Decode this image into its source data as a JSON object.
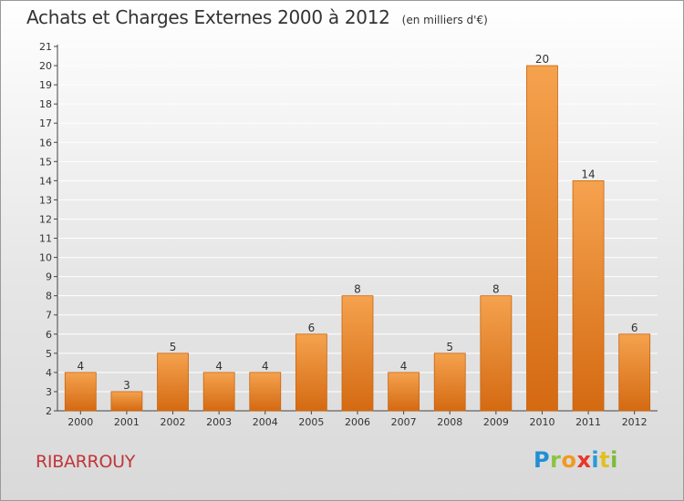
{
  "header": {
    "title": "Achats et Charges Externes 2000 à 2012",
    "subtitle": "(en milliers d'€)"
  },
  "commune": "RIBARROUY",
  "logo": {
    "text": "Proxiti"
  },
  "colors": {
    "bar_top": "#f5a24e",
    "bar_bottom": "#d46a12",
    "bar_stroke": "#c96410",
    "grid": "#ffffff",
    "axis": "#444444",
    "commune": "#c0363a"
  },
  "chart_data": {
    "type": "bar",
    "categories": [
      "2000",
      "2001",
      "2002",
      "2003",
      "2004",
      "2005",
      "2006",
      "2007",
      "2008",
      "2009",
      "2010",
      "2011",
      "2012"
    ],
    "values": [
      4,
      3,
      5,
      4,
      4,
      6,
      8,
      4,
      5,
      8,
      20,
      14,
      6
    ],
    "data_labels": [
      "4",
      "3",
      "5",
      "4",
      "4",
      "6",
      "8",
      "4",
      "5",
      "8",
      "20",
      "14",
      "6"
    ],
    "ylim": [
      2,
      21
    ],
    "yticks": [
      2,
      3,
      4,
      5,
      6,
      7,
      8,
      9,
      10,
      11,
      12,
      13,
      14,
      15,
      16,
      17,
      18,
      19,
      20,
      21
    ],
    "grid": true
  }
}
